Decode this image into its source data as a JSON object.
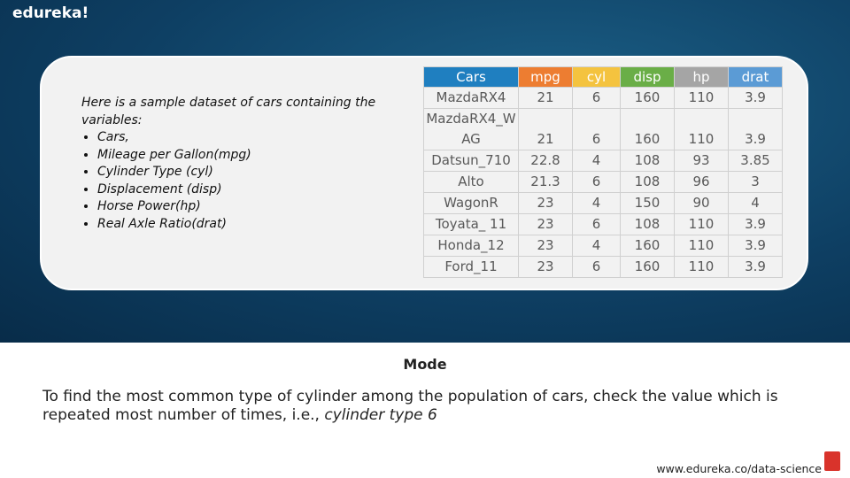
{
  "header": {
    "logo": "edureka!"
  },
  "intro": {
    "text": "Here is a sample dataset of cars containing the variables:",
    "bullets": [
      "Cars,",
      "Mileage per Gallon(mpg)",
      "Cylinder Type (cyl)",
      "Displacement (disp)",
      "Horse Power(hp)",
      "Real Axle Ratio(drat)"
    ]
  },
  "table": {
    "columns": [
      "Cars",
      "mpg",
      "cyl",
      "disp",
      "hp",
      "drat"
    ],
    "rows": [
      [
        "MazdaRX4",
        21,
        6,
        160,
        110,
        3.9
      ],
      [
        "MazdaRX4_WAG",
        21,
        6,
        160,
        110,
        3.9
      ],
      [
        "Datsun_710",
        22.8,
        4,
        108,
        93,
        3.85
      ],
      [
        "Alto",
        21.3,
        6,
        108,
        96,
        3
      ],
      [
        "WagonR",
        23,
        4,
        150,
        90,
        4
      ],
      [
        "Toyata_ 11",
        23,
        6,
        108,
        110,
        3.9
      ],
      [
        "Honda_12",
        23,
        4,
        160,
        110,
        3.9
      ],
      [
        "Ford_11",
        23,
        6,
        160,
        110,
        3.9
      ]
    ]
  },
  "section": {
    "title": "Mode",
    "text": "To find the most common type of cylinder among the population of cars, check the value which is repeated most number of times, i.e., ",
    "emphasis": "cylinder type 6"
  },
  "footer": {
    "url": "www.edureka.co/data-science"
  }
}
